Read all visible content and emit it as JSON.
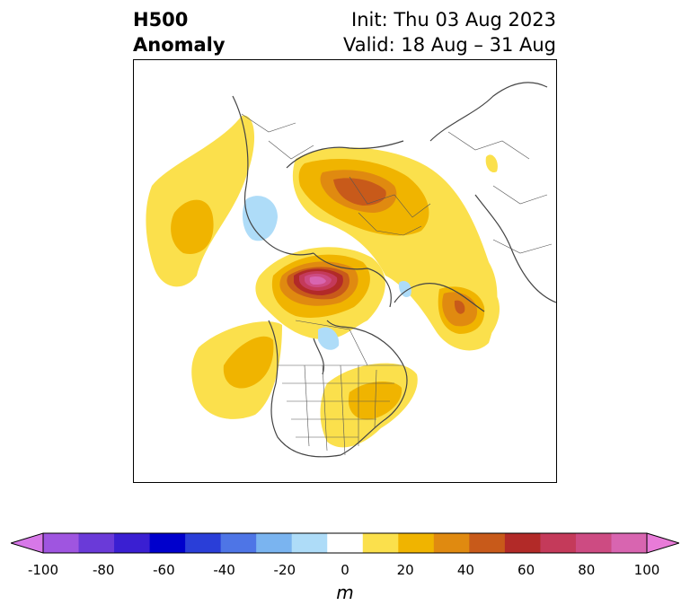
{
  "title": {
    "line1": "H500",
    "line2": "Anomaly",
    "init": "Init: Thu 03 Aug 2023",
    "valid": "Valid: 18 Aug – 31 Aug"
  },
  "colorbar": {
    "unit": "m",
    "ticks": [
      "-100",
      "-80",
      "-60",
      "-40",
      "-20",
      "0",
      "20",
      "40",
      "60",
      "80",
      "100"
    ],
    "colors": [
      "#d778e8",
      "#9f55e0",
      "#6a3ad8",
      "#3a1fd2",
      "#0000cc",
      "#2a3ed8",
      "#4e75e6",
      "#7ab4f0",
      "#aedcf8",
      "#ffffff",
      "#fbe04c",
      "#f0b400",
      "#e08a10",
      "#c85a1a",
      "#b22a28",
      "#c43a5a",
      "#cd4b82",
      "#d865b0",
      "#e87bd8"
    ]
  },
  "map": {
    "projection": "north polar stereographic",
    "features": [
      "coastlines",
      "country borders",
      "US state borders",
      "Canadian province borders"
    ]
  }
}
